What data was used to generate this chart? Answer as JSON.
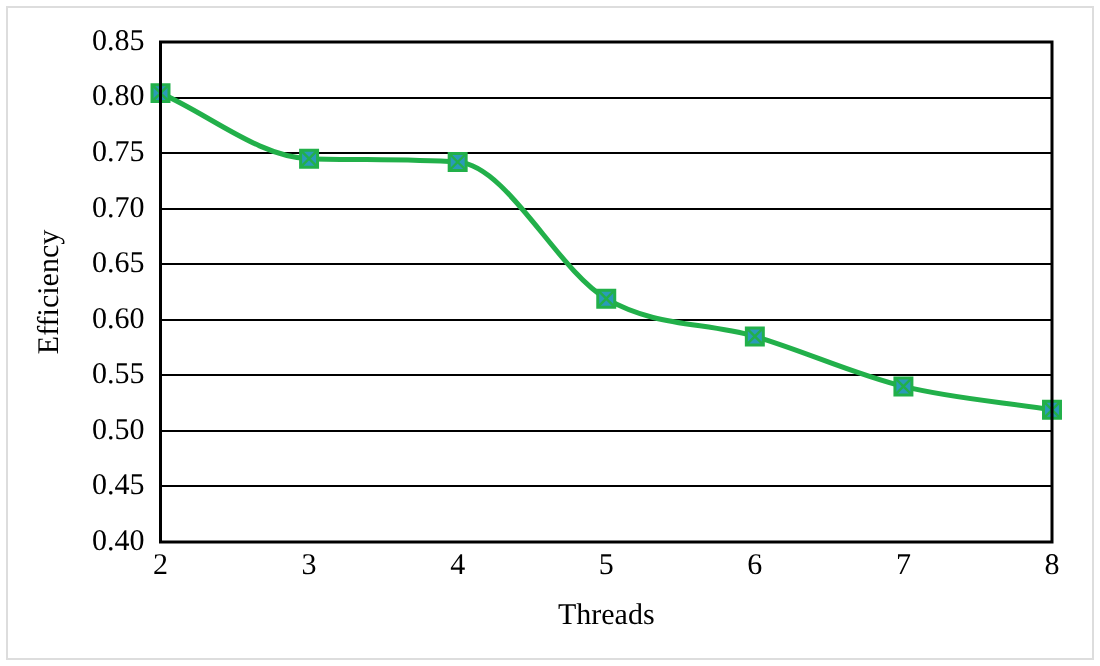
{
  "chart_data": {
    "type": "line",
    "xlabel": "Threads",
    "ylabel": "Efficiency",
    "x": [
      2,
      3,
      4,
      5,
      6,
      7,
      8
    ],
    "series": [
      {
        "color": "#22b04a",
        "values": [
          0.804,
          0.745,
          0.742,
          0.619,
          0.585,
          0.54,
          0.519
        ]
      }
    ],
    "xlim": [
      2,
      8
    ],
    "xticks": [
      2,
      3,
      4,
      5,
      6,
      7,
      8
    ],
    "ylim": [
      0.4,
      0.85
    ],
    "yticks": [
      {
        "value": 0.4,
        "label": "0.40"
      },
      {
        "value": 0.45,
        "label": "0.45"
      },
      {
        "value": 0.5,
        "label": "0.50"
      },
      {
        "value": 0.55,
        "label": "0.55"
      },
      {
        "value": 0.6,
        "label": "0.60"
      },
      {
        "value": 0.65,
        "label": "0.65"
      },
      {
        "value": 0.7,
        "label": "0.70"
      },
      {
        "value": 0.75,
        "label": "0.75"
      },
      {
        "value": 0.8,
        "label": "0.80"
      },
      {
        "value": 0.85,
        "label": "0.85"
      }
    ],
    "grid": "y",
    "legend": false,
    "marker": "square",
    "line_style": "solid"
  }
}
